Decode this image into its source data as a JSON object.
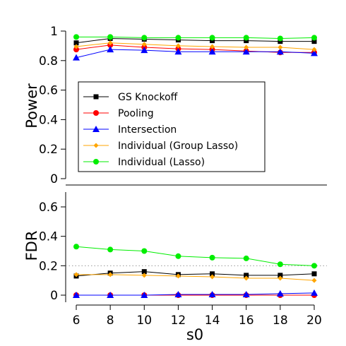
{
  "chart_data": [
    {
      "type": "line",
      "ylabel": "Power",
      "ylim": [
        0,
        1
      ],
      "yticks": [
        "0",
        "0.2",
        "0.4",
        "0.6",
        "0.8",
        "1"
      ],
      "x": [
        6,
        8,
        10,
        12,
        14,
        16,
        18,
        20
      ],
      "legend": "inside, left",
      "series": [
        {
          "name": "GS Knockoff",
          "color": "#000000",
          "marker": "square",
          "values": [
            0.92,
            0.95,
            0.945,
            0.94,
            0.935,
            0.935,
            0.93,
            0.93
          ]
        },
        {
          "name": "Pooling",
          "color": "#ff0000",
          "marker": "circle",
          "values": [
            0.875,
            0.905,
            0.89,
            0.88,
            0.875,
            0.865,
            0.855,
            0.855
          ]
        },
        {
          "name": "Intersection",
          "color": "#0000ff",
          "marker": "triangle",
          "values": [
            0.82,
            0.875,
            0.87,
            0.86,
            0.86,
            0.86,
            0.86,
            0.85
          ]
        },
        {
          "name": "Individual (Group Lasso)",
          "color": "#ffa500",
          "marker": "diamond",
          "values": [
            0.895,
            0.92,
            0.91,
            0.9,
            0.895,
            0.89,
            0.89,
            0.875
          ]
        },
        {
          "name": "Individual (Lasso)",
          "color": "#00ee00",
          "marker": "circle",
          "values": [
            0.96,
            0.96,
            0.955,
            0.955,
            0.955,
            0.955,
            0.95,
            0.955
          ]
        }
      ]
    },
    {
      "type": "line",
      "xlabel": "s0",
      "ylabel": "FDR",
      "ylim": [
        0,
        0.7
      ],
      "xticks": [
        "6",
        "8",
        "10",
        "12",
        "14",
        "16",
        "18",
        "20"
      ],
      "yticks": [
        "0",
        "0.2",
        "0.4",
        "0.6"
      ],
      "reference_line": 0.2,
      "x": [
        6,
        8,
        10,
        12,
        14,
        16,
        18,
        20
      ],
      "series": [
        {
          "name": "GS Knockoff",
          "color": "#000000",
          "marker": "square",
          "values": [
            0.13,
            0.15,
            0.16,
            0.14,
            0.145,
            0.135,
            0.135,
            0.145
          ]
        },
        {
          "name": "Pooling",
          "color": "#ff0000",
          "marker": "circle",
          "values": [
            0.0,
            0.0,
            0.0,
            0.0,
            0.0,
            0.0,
            0.0,
            0.0
          ]
        },
        {
          "name": "Intersection",
          "color": "#0000ff",
          "marker": "triangle",
          "values": [
            0.0,
            0.0,
            0.0,
            0.005,
            0.005,
            0.005,
            0.01,
            0.015
          ]
        },
        {
          "name": "Individual (Group Lasso)",
          "color": "#ffa500",
          "marker": "diamond",
          "values": [
            0.14,
            0.14,
            0.135,
            0.13,
            0.125,
            0.115,
            0.115,
            0.1
          ]
        },
        {
          "name": "Individual (Lasso)",
          "color": "#00ee00",
          "marker": "circle",
          "values": [
            0.33,
            0.31,
            0.3,
            0.265,
            0.255,
            0.25,
            0.21,
            0.2
          ]
        }
      ]
    }
  ]
}
